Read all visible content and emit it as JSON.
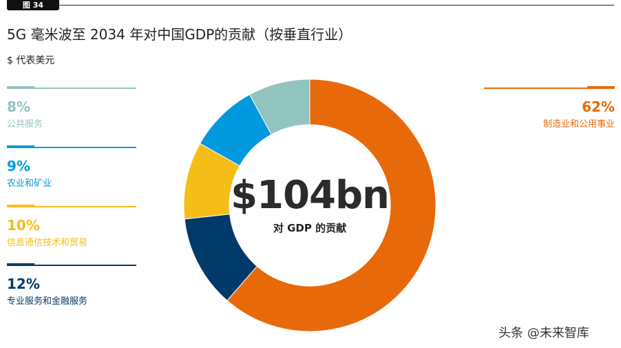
{
  "figure_tag": "图 34",
  "title": "5G 毫米波至 2034 年对中国GDP的贡献（按垂直行业）",
  "subtitle": "$ 代表美元",
  "watermark": "头条 @未来智库",
  "center": {
    "value": "$104bn",
    "label": "对 GDP 的贡献"
  },
  "colors": {
    "manufacturing": "#e8690a",
    "professional": "#003a6b",
    "ict": "#f5bd17",
    "agriculture": "#0099dd",
    "public": "#92c4bf"
  },
  "legend": {
    "public": {
      "pct": "8%",
      "label": "公共服务"
    },
    "agriculture": {
      "pct": "9%",
      "label": "农业和矿业"
    },
    "ict": {
      "pct": "10%",
      "label": "信息通信技术和贸易"
    },
    "professional": {
      "pct": "12%",
      "label": "专业服务和金融服务"
    },
    "manufacturing": {
      "pct": "62%",
      "label": "制造业和公用事业"
    }
  },
  "chart_data": {
    "type": "pie",
    "title": "5G 毫米波至 2034 年对中国GDP的贡献（按垂直行业）",
    "unit": "$ 代表美元",
    "total": "$104bn",
    "categories": [
      "制造业和公用事业",
      "专业服务和金融服务",
      "信息通信技术和贸易",
      "农业和矿业",
      "公共服务"
    ],
    "values": [
      62,
      12,
      10,
      9,
      8
    ],
    "colors": [
      "#e8690a",
      "#003a6b",
      "#f5bd17",
      "#0099dd",
      "#92c4bf"
    ]
  }
}
